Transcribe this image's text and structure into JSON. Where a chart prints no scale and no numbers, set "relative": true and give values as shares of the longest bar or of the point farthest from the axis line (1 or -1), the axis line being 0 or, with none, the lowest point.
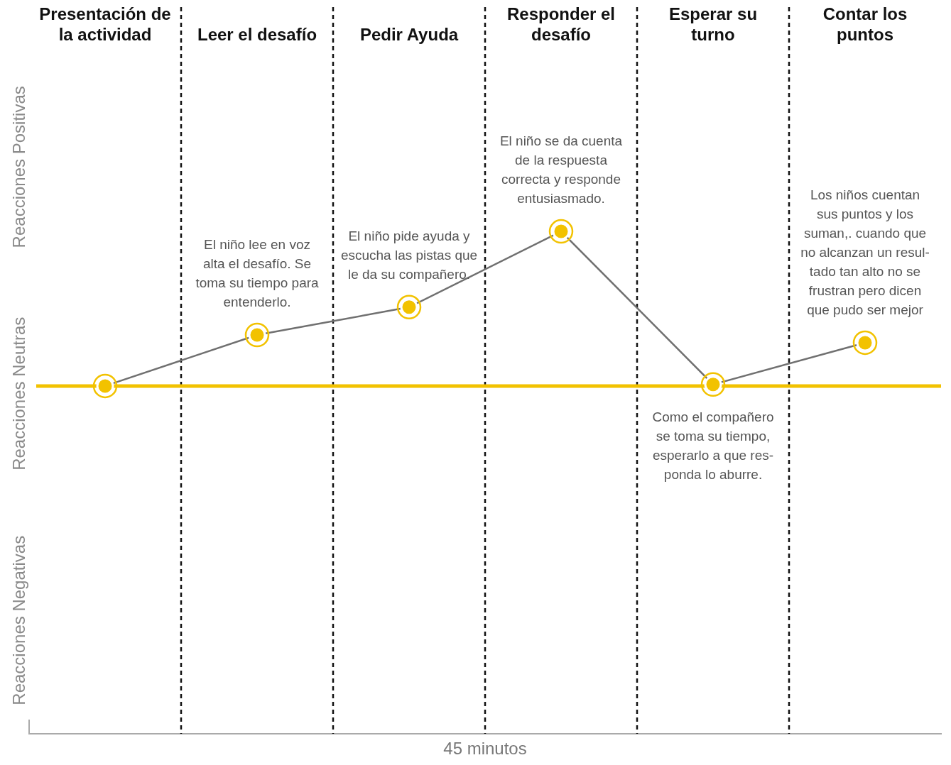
{
  "chart_data": {
    "type": "line",
    "relative": true,
    "categories": [
      "Presentación de la actividad",
      "Leer el desafío",
      "Pedir Ayuda",
      "Responder el desafío",
      "Esperar su turno",
      "Contar los puntos"
    ],
    "series": [
      {
        "color": "#f2c200",
        "values": [
          0,
          0.33,
          0.51,
          1,
          0.01,
          0.28
        ]
      }
    ],
    "marker": "circle",
    "grid": "x",
    "legend": false,
    "ref_lines": [
      {
        "axis": "y",
        "value": 0,
        "color": "#f2c200"
      }
    ],
    "annotations": [
      "Reacciones Positivas",
      "Reacciones Neutras",
      "Reacciones Negativas",
      "45 minutos",
      {
        "text": "El niño lee en voz\nalta el desafío. Se\ntoma su tiempo para\nentenderlo.",
        "x": "Leer el desafío",
        "y": 0.33
      },
      {
        "text": "El niño pide ayuda y\nescucha las pistas que\nle da su compañero.",
        "x": "Pedir Ayuda",
        "y": 0.51
      },
      {
        "text": "El niño se da cuenta\nde la respuesta\ncorrecta y responde\nentusiasmado.",
        "x": "Responder el desafío",
        "y": 1
      },
      {
        "text": "Como el compañero\nse toma su tiempo,\nesperarlo a que res-\nponda lo aburre.",
        "x": "Esperar su turno",
        "y": 0.01
      },
      {
        "text": "Los niños cuentan\nsus puntos y los\nsuman,. cuando que\nno alcanzan un resul-\ntado tan alto no se\nfrustran pero dicen\nque pudo ser mejor",
        "x": "Contar los puntos",
        "y": 0.28
      }
    ]
  }
}
